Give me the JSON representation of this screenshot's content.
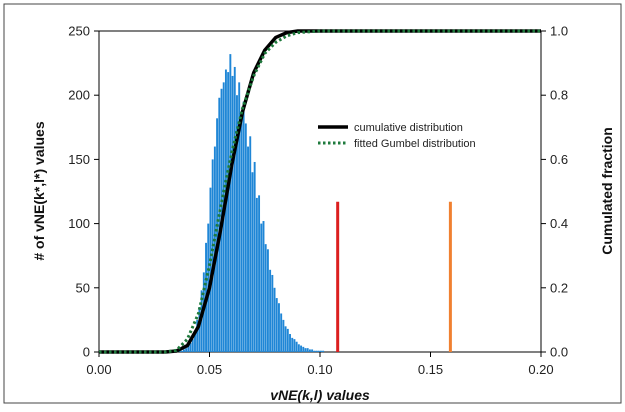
{
  "chart_data": {
    "type": "bar",
    "title": "",
    "xlabel": "vNE(k,l) values",
    "ylabel_left": "# of vNE(k*,l*) values",
    "ylabel_right": "Cumulated fraction",
    "xlim": [
      0.0,
      0.2
    ],
    "ylim_left": [
      0,
      250
    ],
    "ylim_right": [
      0.0,
      1.0
    ],
    "x_ticks": [
      "0.00",
      "0.05",
      "0.10",
      "0.15",
      "0.20"
    ],
    "x_tick_values": [
      0.0,
      0.05,
      0.1,
      0.15,
      0.2
    ],
    "y_left_ticks": [
      "0",
      "50",
      "100",
      "150",
      "200",
      "250"
    ],
    "y_left_tick_values": [
      0,
      50,
      100,
      150,
      200,
      250
    ],
    "y_right_ticks": [
      "0.0",
      "0.2",
      "0.4",
      "0.6",
      "0.8",
      "1.0"
    ],
    "y_right_tick_values": [
      0.0,
      0.2,
      0.4,
      0.6,
      0.8,
      1.0
    ],
    "grid": false,
    "legend_position": "center-right",
    "histogram": {
      "color": "#1f86d6",
      "bin_width": 0.001,
      "bin_start": [
        0.036,
        0.037,
        0.038,
        0.039,
        0.04,
        0.041,
        0.042,
        0.043,
        0.044,
        0.045,
        0.046,
        0.047,
        0.048,
        0.049,
        0.05,
        0.051,
        0.052,
        0.053,
        0.054,
        0.055,
        0.056,
        0.057,
        0.058,
        0.059,
        0.06,
        0.061,
        0.062,
        0.063,
        0.064,
        0.065,
        0.066,
        0.067,
        0.068,
        0.069,
        0.07,
        0.071,
        0.072,
        0.073,
        0.074,
        0.075,
        0.076,
        0.077,
        0.078,
        0.079,
        0.08,
        0.081,
        0.082,
        0.083,
        0.084,
        0.085,
        0.086,
        0.087,
        0.088,
        0.089,
        0.09,
        0.091,
        0.092,
        0.093,
        0.094,
        0.095,
        0.096,
        0.097,
        0.098,
        0.099,
        0.1,
        0.101
      ],
      "counts": [
        1,
        1,
        2,
        3,
        5,
        7,
        10,
        16,
        25,
        35,
        48,
        62,
        85,
        100,
        128,
        150,
        160,
        182,
        198,
        205,
        210,
        220,
        218,
        232,
        215,
        222,
        200,
        210,
        185,
        195,
        178,
        160,
        168,
        140,
        148,
        120,
        122,
        100,
        102,
        84,
        80,
        64,
        60,
        50,
        42,
        38,
        30,
        25,
        20,
        18,
        14,
        11,
        10,
        8,
        6,
        5,
        4,
        3,
        3,
        2,
        2,
        1,
        1,
        1,
        1,
        1
      ]
    },
    "series": [
      {
        "name": "cumulative distribution",
        "axis": "right",
        "style": "solid",
        "color": "#000000",
        "x": [
          0.0,
          0.03,
          0.035,
          0.04,
          0.045,
          0.05,
          0.055,
          0.06,
          0.065,
          0.07,
          0.075,
          0.08,
          0.085,
          0.09,
          0.1,
          0.2
        ],
        "y": [
          0.0,
          0.0,
          0.003,
          0.02,
          0.08,
          0.2,
          0.38,
          0.58,
          0.75,
          0.87,
          0.94,
          0.98,
          0.995,
          1.0,
          1.0,
          1.0
        ]
      },
      {
        "name": "fitted Gumbel distribution",
        "axis": "right",
        "style": "dotted",
        "color": "#1e7a3c",
        "x": [
          0.0,
          0.03,
          0.035,
          0.04,
          0.045,
          0.05,
          0.055,
          0.06,
          0.065,
          0.07,
          0.075,
          0.08,
          0.085,
          0.09,
          0.1,
          0.2
        ],
        "y": [
          0.0,
          0.0,
          0.005,
          0.04,
          0.12,
          0.27,
          0.45,
          0.62,
          0.76,
          0.86,
          0.93,
          0.965,
          0.985,
          0.995,
          1.0,
          1.0
        ]
      }
    ],
    "markers": [
      {
        "x": 0.108,
        "value_left": 117,
        "color": "#dc1f1f"
      },
      {
        "x": 0.159,
        "value_left": 117,
        "color": "#f08030"
      }
    ]
  }
}
